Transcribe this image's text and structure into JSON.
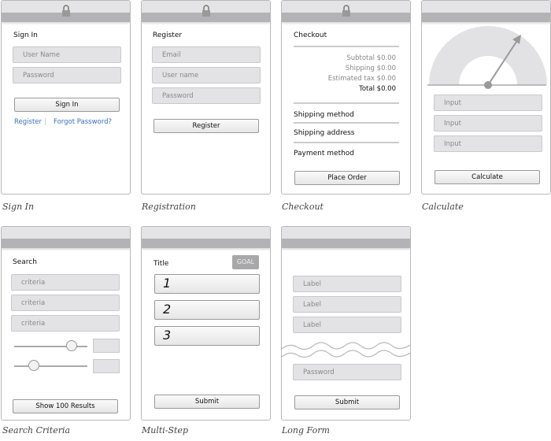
{
  "screens": {
    "signin": {
      "caption": "Sign In",
      "title": "Sign In",
      "username_placeholder": "User Name",
      "password_placeholder": "Password",
      "button": "Sign In",
      "register_link": "Register",
      "separator": "|",
      "forgot_link": "Forgot Password?"
    },
    "registration": {
      "caption": "Registration",
      "title": "Register",
      "email_placeholder": "Email",
      "username_placeholder": "User name",
      "password_placeholder": "Password",
      "button": "Register"
    },
    "checkout": {
      "caption": "Checkout",
      "title": "Checkout",
      "subtotal": "Subtotal $0.00",
      "shipping": "Shipping $0.00",
      "tax": "Estimated tax $0.00",
      "total": "Total $0.00",
      "shipping_method": "Shipping method",
      "shipping_address": "Shipping address",
      "payment_method": "Payment method",
      "button": "Place Order"
    },
    "calculate": {
      "caption": "Calculate",
      "inputs": [
        "Input",
        "Input",
        "Input"
      ],
      "button": "Calculate"
    },
    "search": {
      "caption": "Search Criteria",
      "title": "Search",
      "criteria": [
        "criteria",
        "criteria",
        "criteria"
      ],
      "slider1_value": 0.78,
      "slider2_value": 0.27,
      "button": "Show 100 Results"
    },
    "multistep": {
      "caption": "Multi-Step",
      "title": "Title",
      "goal": "GOAL",
      "steps": [
        "1",
        "2",
        "3"
      ],
      "button": "Submit"
    },
    "longform": {
      "caption": "Long Form",
      "labels": [
        "Label",
        "Label",
        "Label"
      ],
      "password_placeholder": "Password",
      "button": "Submit"
    }
  }
}
